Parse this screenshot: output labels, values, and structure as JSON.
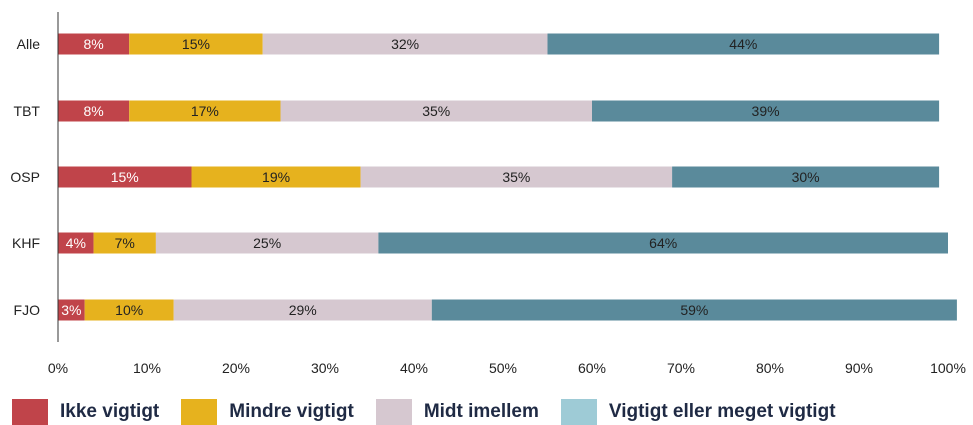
{
  "chart_data": {
    "type": "bar",
    "orientation": "horizontal",
    "stacked": true,
    "categories": [
      "Alle",
      "TBT",
      "OSP",
      "KHF",
      "FJO"
    ],
    "series": [
      {
        "name": "Ikke vigtigt",
        "values": [
          8,
          8,
          15,
          4,
          3
        ],
        "labels": [
          "8%",
          "8%",
          "15%",
          "4%",
          "3%"
        ],
        "color": "#c0444a",
        "label_color": "#ffffff"
      },
      {
        "name": "Mindre vigtigt",
        "values": [
          15,
          17,
          19,
          7,
          10
        ],
        "labels": [
          "15%",
          "17%",
          "19%",
          "7%",
          "10%"
        ],
        "color": "#e6b21e",
        "label_color": "#222222"
      },
      {
        "name": "Midt imellem",
        "values": [
          32,
          35,
          35,
          25,
          29
        ],
        "labels": [
          "32%",
          "35%",
          "35%",
          "25%",
          "29%"
        ],
        "color": "#d6c8d0",
        "label_color": "#222222"
      },
      {
        "name": "Vigtigt eller meget vigtigt",
        "values": [
          44,
          39,
          30,
          64,
          59
        ],
        "labels": [
          "44%",
          "39%",
          "30%",
          "64%",
          "59%"
        ],
        "color": "#5a8a9b",
        "label_color": "#222222"
      }
    ],
    "xlim": [
      0,
      100
    ],
    "xticks": [
      "0%",
      "10%",
      "20%",
      "30%",
      "40%",
      "50%",
      "60%",
      "70%",
      "80%",
      "90%",
      "100%"
    ],
    "grid": false,
    "legend_position": "bottom",
    "legend_colors": [
      "#c0444a",
      "#e6b21e",
      "#d6c8d0",
      "#9ecbd6"
    ]
  }
}
